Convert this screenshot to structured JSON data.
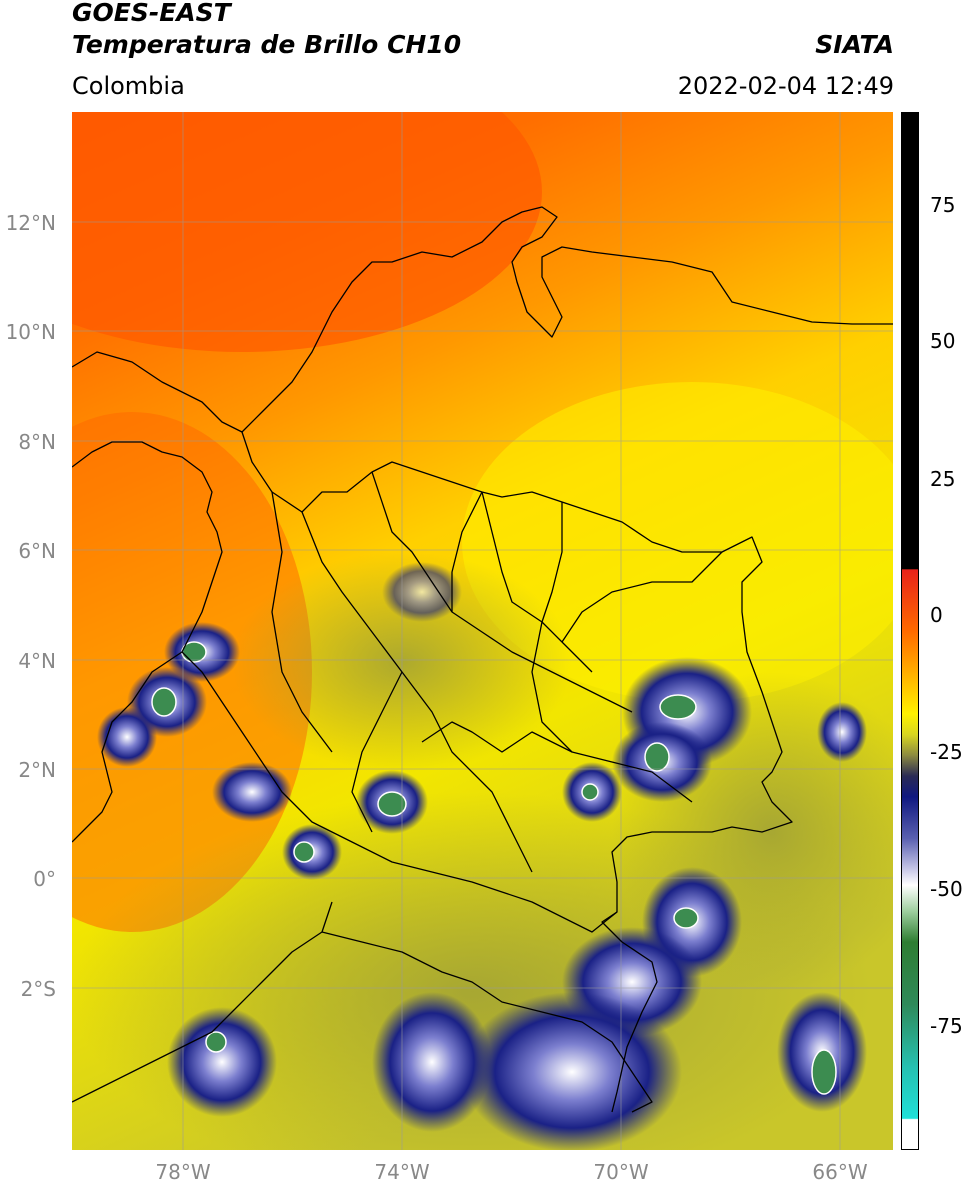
{
  "header": {
    "satellite": "GOES-EAST",
    "product": "Temperatura de Brillo CH10",
    "brand": "SIATA",
    "region": "Colombia",
    "timestamp": "2022-02-04 12:49"
  },
  "axes": {
    "lat_labels": [
      "12°N",
      "10°N",
      "8°N",
      "6°N",
      "4°N",
      "2°N",
      "0°",
      "2°S"
    ],
    "lon_labels": [
      "78°W",
      "74°W",
      "70°W",
      "66°W"
    ],
    "grid": true
  },
  "colorbar": {
    "tick_labels": [
      "75",
      "50",
      "25",
      "0",
      "-25",
      "-50",
      "-75"
    ],
    "palette": {
      "black": "#000000",
      "red": "#e8231a",
      "orange": "#ff6a00",
      "yellow": "#fff200",
      "olive": "#b8b62c",
      "navy": "#101880",
      "white": "#ffffff",
      "green": "#2e7d32",
      "cyan": "#20d8d0"
    }
  },
  "map_colors": {
    "warm_sea": "#ff6a00",
    "mid": "#ffb000",
    "land": "#fff000",
    "cloud_olive": "#b3b437",
    "deep_cloud": "#15207d",
    "cold_top": "#3c8c50"
  }
}
